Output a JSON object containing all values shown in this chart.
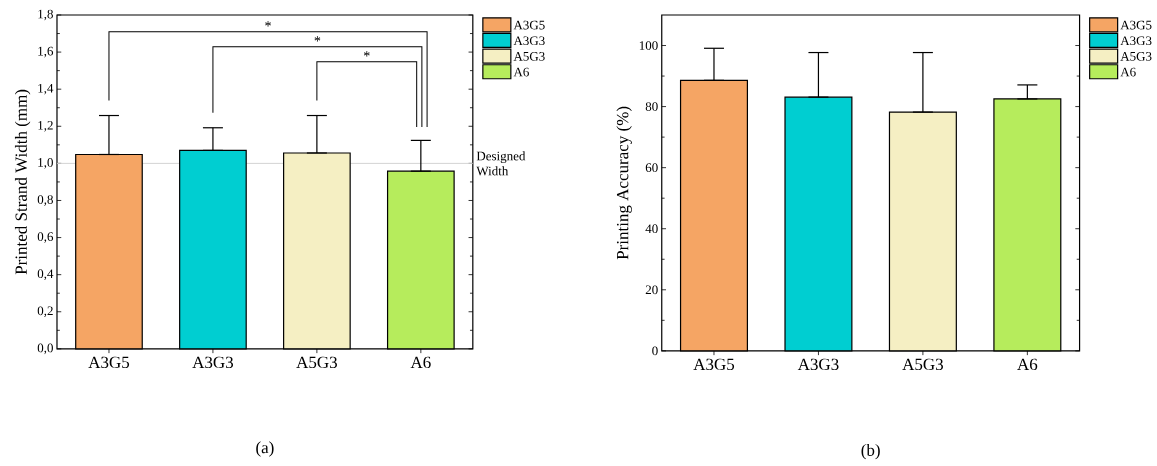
{
  "chart_data": [
    {
      "type": "bar",
      "ylabel": "Printed Strand Width (mm)",
      "categories": [
        "A3G5",
        "A3G3",
        "A5G3",
        "A6"
      ],
      "series": [
        {
          "name": "A3G5",
          "color": "#f5a564",
          "values": [
            1.048,
            null,
            null,
            null
          ],
          "errors": [
            [
              1.048,
              1.258
            ],
            null,
            null,
            null
          ]
        },
        {
          "name": "A3G3",
          "color": "#00ced1",
          "values": [
            null,
            1.07,
            null,
            null
          ],
          "errors": [
            null,
            [
              1.07,
              1.192
            ],
            null,
            null
          ]
        },
        {
          "name": "A5G3",
          "color": "#f5efc3",
          "values": [
            null,
            null,
            1.056,
            null
          ],
          "errors": [
            null,
            null,
            [
              1.056,
              1.258
            ],
            null
          ]
        },
        {
          "name": "A6",
          "color": "#b6ec5c",
          "values": [
            null,
            null,
            null,
            0.958
          ],
          "errors": [
            null,
            null,
            null,
            [
              0.958,
              1.124
            ]
          ]
        }
      ],
      "ylim": [
        0,
        1.8
      ],
      "yticks": [
        {
          "value": 0,
          "label": "0,0"
        },
        {
          "value": 0.2,
          "label": "0,2"
        },
        {
          "value": 0.4,
          "label": "0,4"
        },
        {
          "value": 0.6,
          "label": "0,6"
        },
        {
          "value": 0.8,
          "label": "0,8"
        },
        {
          "value": 1.0,
          "label": "1,0"
        },
        {
          "value": 1.2,
          "label": "1,2"
        },
        {
          "value": 1.4,
          "label": "1,4"
        },
        {
          "value": 1.6,
          "label": "1,6"
        },
        {
          "value": 1.8,
          "label": "1,8"
        }
      ],
      "ref_lines": [
        {
          "axis": "y",
          "value": 1.0,
          "label": "Designed Width",
          "color": "#d3d3d3"
        }
      ],
      "annotations": [
        "*",
        "*",
        "*",
        "(a)"
      ],
      "legend": "top right"
    },
    {
      "type": "bar",
      "ylabel": "Printing Accuracy (%)",
      "categories": [
        "A3G5",
        "A3G3",
        "A5G3",
        "A6"
      ],
      "series": [
        {
          "name": "A3G5",
          "color": "#f5a564",
          "values": [
            88.6,
            null,
            null,
            null
          ],
          "errors": [
            [
              88.6,
              99.1
            ],
            null,
            null,
            null
          ]
        },
        {
          "name": "A3G3",
          "color": "#00ced1",
          "values": [
            null,
            83.1,
            null,
            null
          ],
          "errors": [
            null,
            [
              83.1,
              97.7
            ],
            null,
            null
          ]
        },
        {
          "name": "A5G3",
          "color": "#f5efc3",
          "values": [
            null,
            null,
            78.2,
            null
          ],
          "errors": [
            null,
            null,
            [
              78.2,
              97.7
            ],
            null
          ]
        },
        {
          "name": "A6",
          "color": "#b6ec5c",
          "values": [
            null,
            null,
            null,
            82.5
          ],
          "errors": [
            null,
            null,
            null,
            [
              82.5,
              87.1
            ]
          ]
        }
      ],
      "ylim": [
        0,
        110
      ],
      "yticks": [
        0,
        20,
        40,
        60,
        80,
        100
      ],
      "annotations": [
        "(b)"
      ],
      "legend": "top right"
    }
  ]
}
